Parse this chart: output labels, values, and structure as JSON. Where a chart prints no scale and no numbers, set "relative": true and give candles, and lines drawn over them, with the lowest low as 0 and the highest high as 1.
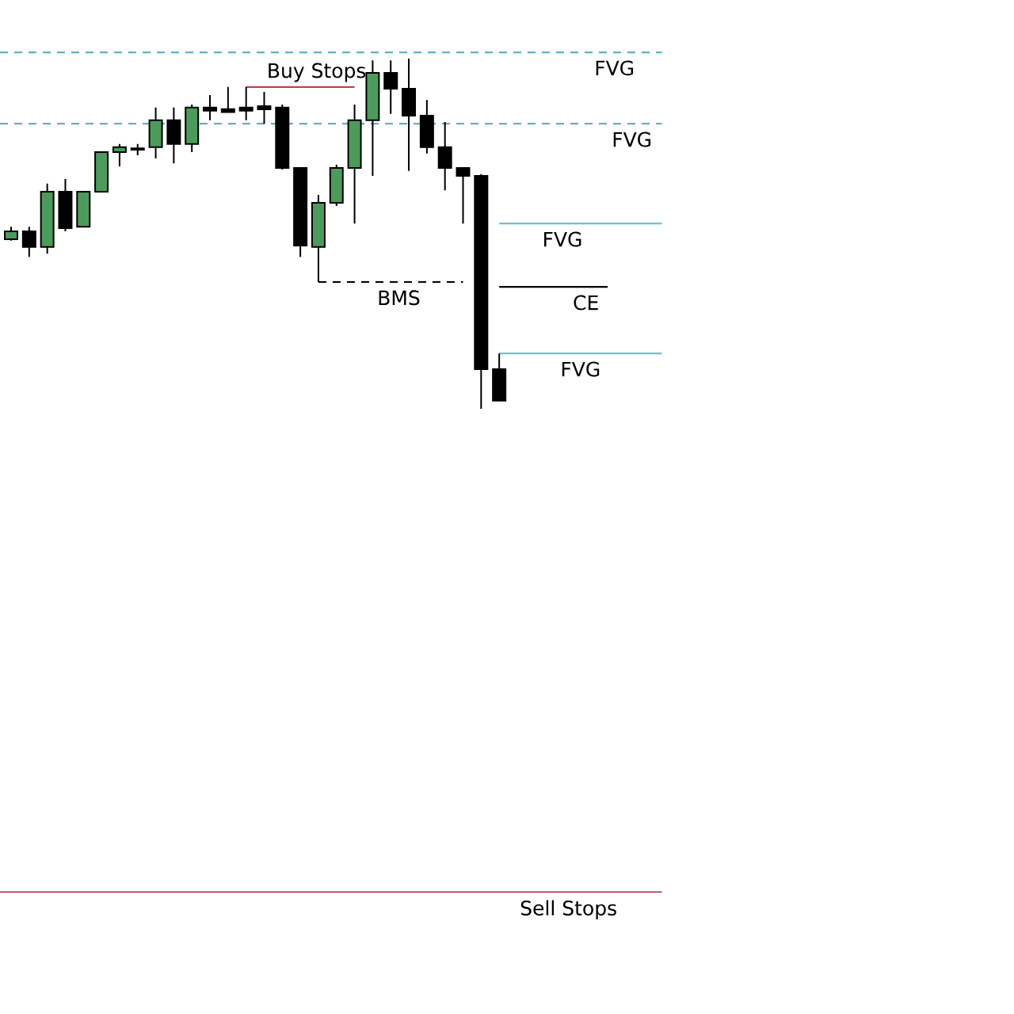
{
  "chart_data": {
    "type": "candlestick",
    "relative": true,
    "categories": [
      null,
      null,
      null,
      null,
      null,
      null,
      null,
      null,
      null,
      null,
      null,
      null,
      null,
      null,
      null,
      null,
      null,
      null,
      null,
      null,
      null,
      null,
      null,
      null,
      null,
      null,
      null,
      null,
      null,
      null,
      null,
      null,
      null,
      null,
      null,
      null,
      null
    ],
    "ohlc": [
      [
        0.484,
        0.52,
        0.48,
        0.507
      ],
      [
        0.507,
        0.52,
        0.434,
        0.462
      ],
      [
        0.462,
        0.643,
        0.443,
        0.62
      ],
      [
        0.62,
        0.656,
        0.507,
        0.516
      ],
      [
        0.52,
        0.62,
        0.52,
        0.62
      ],
      [
        0.62,
        0.733,
        0.62,
        0.733
      ],
      [
        0.733,
        0.756,
        0.692,
        0.747
      ],
      [
        0.744,
        0.756,
        0.724,
        0.74
      ],
      [
        0.747,
        0.86,
        0.715,
        0.824
      ],
      [
        0.824,
        0.86,
        0.701,
        0.756
      ],
      [
        0.756,
        0.869,
        0.733,
        0.86
      ],
      [
        0.86,
        0.896,
        0.824,
        0.851
      ],
      [
        0.856,
        0.919,
        0.847,
        0.847
      ],
      [
        0.86,
        0.919,
        0.824,
        0.851
      ],
      [
        0.864,
        0.905,
        0.814,
        0.855
      ],
      [
        0.86,
        0.869,
        0.683,
        0.688
      ],
      [
        0.688,
        0.688,
        0.434,
        0.466
      ],
      [
        0.462,
        0.611,
        0.362,
        0.588
      ],
      [
        0.588,
        0.697,
        0.579,
        0.688
      ],
      [
        0.688,
        0.869,
        0.529,
        0.824
      ],
      [
        0.824,
        0.995,
        0.665,
        0.959
      ],
      [
        0.959,
        0.995,
        0.842,
        0.914
      ],
      [
        0.914,
        1.0,
        0.679,
        0.837
      ],
      [
        0.837,
        0.882,
        0.729,
        0.747
      ],
      [
        0.747,
        0.819,
        0.624,
        0.688
      ],
      [
        0.688,
        0.688,
        0.529,
        0.665
      ],
      [
        0.665,
        0.67,
        0.0,
        0.113
      ],
      [
        0.113,
        0.158,
        0.023,
        0.023
      ],
      null,
      null,
      null,
      null,
      null,
      null,
      null,
      null,
      null
    ],
    "colors": [
      "#4c9b5c",
      "#000000",
      "#4c9b5c",
      "#000000",
      "#4c9b5c",
      "#4c9b5c",
      "#4c9b5c",
      "#000000",
      "#4c9b5c",
      "#000000",
      "#4c9b5c",
      "#000000",
      "#000000",
      "#000000",
      "#000000",
      "#000000",
      "#000000",
      "#4c9b5c",
      "#4c9b5c",
      "#4c9b5c",
      "#4c9b5c",
      "#000000",
      "#000000",
      "#000000",
      "#000000",
      "#000000",
      "#000000",
      "#000000",
      null,
      null,
      null,
      null,
      null,
      null,
      null,
      null,
      null
    ],
    "series": [
      {
        "type": "line",
        "name": "FVG",
        "color": "#6cc3cc",
        "line_style": "solid",
        "values": [
          null,
          null,
          null,
          null,
          null,
          null,
          null,
          null,
          null,
          null,
          null,
          null,
          null,
          null,
          null,
          null,
          null,
          null,
          null,
          null,
          null,
          null,
          null,
          null,
          null,
          null,
          null,
          0.529,
          0.529,
          0.529,
          0.529,
          0.529,
          0.529,
          0.529,
          0.529,
          0.529,
          0.529
        ]
      },
      {
        "type": "line",
        "name": "CE",
        "color": "#000000",
        "line_style": "solid",
        "values": [
          null,
          null,
          null,
          null,
          null,
          null,
          null,
          null,
          null,
          null,
          null,
          null,
          null,
          null,
          null,
          null,
          null,
          null,
          null,
          null,
          null,
          null,
          null,
          null,
          null,
          null,
          null,
          0.348,
          0.348,
          0.348,
          0.348,
          0.348,
          0.348,
          0.348,
          null,
          null,
          null
        ]
      },
      {
        "type": "line",
        "name": "FVG",
        "color": "#6cc3cc",
        "line_style": "solid",
        "values": [
          null,
          null,
          null,
          null,
          null,
          null,
          null,
          null,
          null,
          null,
          null,
          null,
          null,
          null,
          null,
          null,
          null,
          null,
          null,
          null,
          null,
          null,
          null,
          null,
          null,
          null,
          null,
          0.158,
          0.158,
          0.158,
          0.158,
          0.158,
          0.158,
          0.158,
          0.158,
          0.158,
          0.158
        ]
      },
      {
        "type": "line",
        "name": "Buy Stops",
        "color": "#b3475b",
        "line_style": "solid",
        "values": [
          null,
          null,
          null,
          null,
          null,
          null,
          null,
          null,
          null,
          null,
          null,
          null,
          null,
          0.919,
          0.919,
          0.919,
          0.919,
          0.919,
          0.919,
          0.919,
          null,
          null,
          null,
          null,
          null,
          null,
          null,
          null,
          null,
          null,
          null,
          null,
          null,
          null,
          null,
          null,
          null
        ]
      },
      {
        "type": "line",
        "name": "BMS",
        "color": "#000000",
        "line_style": "dashed",
        "values": [
          null,
          null,
          null,
          null,
          null,
          null,
          null,
          null,
          null,
          null,
          null,
          null,
          null,
          null,
          null,
          null,
          null,
          0.362,
          0.362,
          0.362,
          0.362,
          0.362,
          0.362,
          0.362,
          0.362,
          0.362,
          null,
          null,
          null,
          null,
          null,
          null,
          null,
          null,
          null,
          null,
          null
        ]
      }
    ],
    "ref_lines": [
      {
        "axis": "y",
        "value": 1.018,
        "label": "FVG",
        "color": "#5fb4bf",
        "line_style": "dashed"
      },
      {
        "axis": "y",
        "value": 0.814,
        "label": "FVG",
        "color": "#5fb4bf",
        "line_style": "dashed"
      },
      {
        "axis": "y",
        "value": -1.38,
        "label": "Sell Stops",
        "color": "#c15b70",
        "line_style": "solid"
      }
    ]
  }
}
